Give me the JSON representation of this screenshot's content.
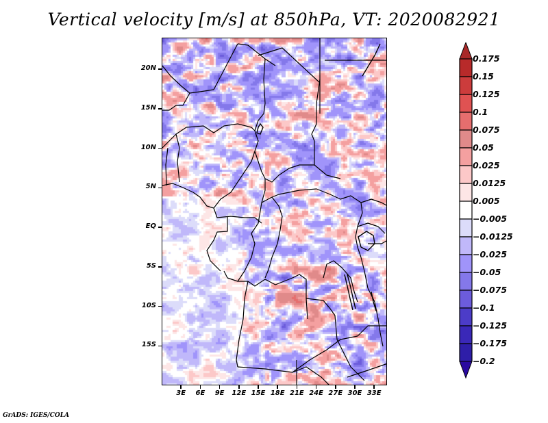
{
  "title": "Vertical velocity [m/s] at 850hPa, VT: 2020082921",
  "footer": "GrADS: IGES/COLA",
  "map": {
    "projection": "latlon",
    "lon_range": [
      0,
      35
    ],
    "lat_range": [
      -20,
      24
    ],
    "region": "Central Africa",
    "y_ticks": [
      {
        "label": "20N",
        "lat": 20
      },
      {
        "label": "15N",
        "lat": 15
      },
      {
        "label": "10N",
        "lat": 10
      },
      {
        "label": "5N",
        "lat": 5
      },
      {
        "label": "EQ",
        "lat": 0
      },
      {
        "label": "5S",
        "lat": -5
      },
      {
        "label": "10S",
        "lat": -10
      },
      {
        "label": "15S",
        "lat": -15
      }
    ],
    "x_ticks": [
      {
        "label": "3E",
        "lon": 3
      },
      {
        "label": "6E",
        "lon": 6
      },
      {
        "label": "9E",
        "lon": 9
      },
      {
        "label": "12E",
        "lon": 12
      },
      {
        "label": "15E",
        "lon": 15
      },
      {
        "label": "18E",
        "lon": 18
      },
      {
        "label": "21E",
        "lon": 21
      },
      {
        "label": "24E",
        "lon": 24
      },
      {
        "label": "27E",
        "lon": 27
      },
      {
        "label": "30E",
        "lon": 30
      },
      {
        "label": "33E",
        "lon": 33
      }
    ]
  },
  "colorbar": {
    "labels": [
      "0.175",
      "0.15",
      "0.125",
      "0.1",
      "0.075",
      "0.05",
      "0.025",
      "0.0125",
      "0.005",
      "−0.005",
      "−0.0125",
      "−0.025",
      "−0.05",
      "−0.075",
      "−0.1",
      "−0.125",
      "−0.175",
      "−0.2"
    ],
    "top_arrow_color": "#a82828",
    "bottom_arrow_color": "#2a0aa0",
    "colors": [
      "#b82a2a",
      "#cc3c3c",
      "#e05252",
      "#e66e6e",
      "#e08a8a",
      "#f4a0a0",
      "#fcc8c8",
      "#fde6e6",
      "#ffffff",
      "#dcdcfa",
      "#c0b8fa",
      "#a094fa",
      "#8478ea",
      "#6c5cdc",
      "#4c3cc8",
      "#3a28b8",
      "#2e1ea8"
    ]
  },
  "chart_data": {
    "type": "heatmap",
    "title": "Vertical velocity [m/s] at 850hPa, VT: 2020082921",
    "variable": "Vertical velocity",
    "units": "m/s",
    "level": "850hPa",
    "valid_time": "2020082921",
    "xlabel": "",
    "ylabel": "",
    "x_ticklabels": [
      "3E",
      "6E",
      "9E",
      "12E",
      "15E",
      "18E",
      "21E",
      "24E",
      "27E",
      "30E",
      "33E"
    ],
    "y_ticklabels": [
      "20N",
      "15N",
      "10N",
      "5N",
      "EQ",
      "5S",
      "10S",
      "15S"
    ],
    "lon_range": [
      0,
      35
    ],
    "lat_range": [
      -20,
      24
    ],
    "contour_levels": [
      -0.2,
      -0.175,
      -0.125,
      -0.1,
      -0.075,
      -0.05,
      -0.025,
      -0.0125,
      -0.005,
      0.005,
      0.0125,
      0.025,
      0.05,
      0.075,
      0.1,
      0.125,
      0.15,
      0.175
    ],
    "legend": "right",
    "grid": false
  }
}
